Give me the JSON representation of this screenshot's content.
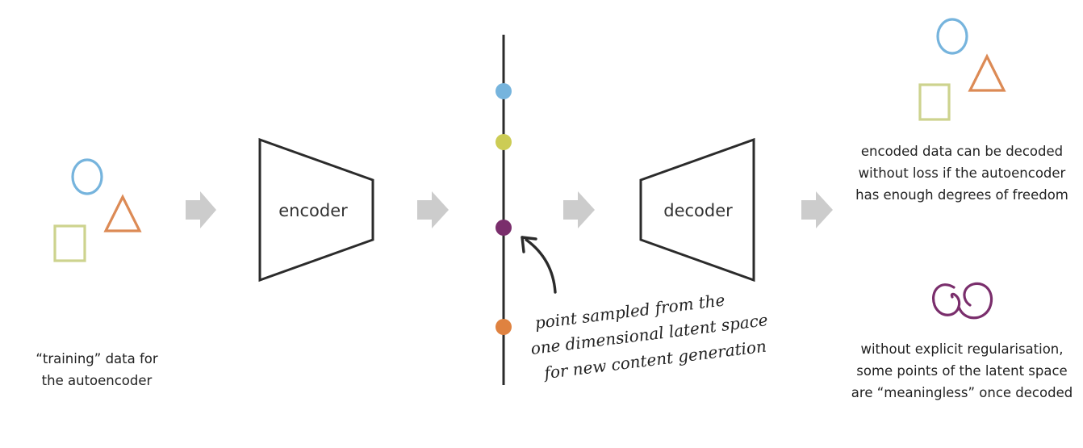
{
  "encoder": {
    "label": "encoder"
  },
  "decoder": {
    "label": "decoder"
  },
  "training_caption": {
    "line1": "“training” data for",
    "line2": "the autoencoder"
  },
  "lossless_caption": {
    "line1": "encoded data can be decoded",
    "line2": "without loss if the autoencoder",
    "line3": "has enough degrees of freedom"
  },
  "meaningless_caption": {
    "line1": "without explicit regularisation,",
    "line2": "some points of the latent space",
    "line3": "are “meaningless” once decoded"
  },
  "annotation": {
    "line1": "point sampled from the",
    "line2": "one dimensional latent space",
    "line3": "for new content generation"
  },
  "colors": {
    "blue": "#76b4dd",
    "orange": "#dc8a55",
    "green": "#cdd38e",
    "yellow": "#cccc55",
    "purple": "#7a2e6c",
    "dot_orange": "#df8240",
    "arrow_grey": "#cccccc",
    "line": "#2b2b2b"
  }
}
